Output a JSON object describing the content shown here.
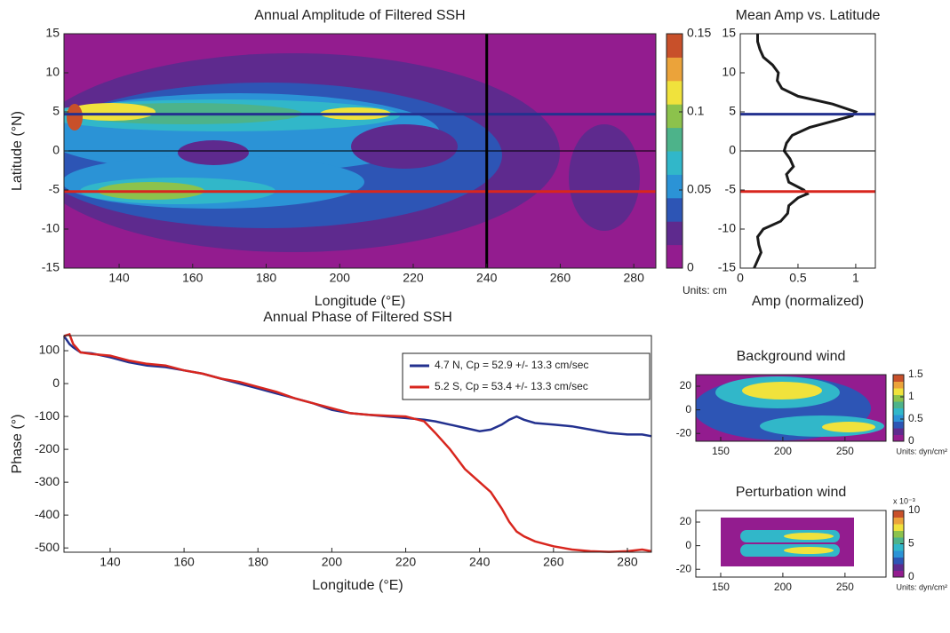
{
  "chart_data": [
    {
      "type": "contour",
      "title": "Annual Amplitude of Filtered SSH",
      "xlabel": "Longitude (°E)",
      "ylabel": "Latitude (°N)",
      "xlim": [
        125,
        286
      ],
      "xticks": [
        140,
        160,
        180,
        200,
        220,
        240,
        260,
        280
      ],
      "ylim": [
        -15,
        15
      ],
      "yticks": [
        -15,
        -10,
        -5,
        0,
        5,
        10,
        15
      ],
      "hlines": [
        {
          "y": 4.7,
          "color": "#23318f"
        },
        {
          "y": 0,
          "color": "#000000"
        },
        {
          "y": -5.2,
          "color": "#d8261e"
        }
      ],
      "vlines": [
        {
          "x": 240,
          "color": "#000000"
        }
      ],
      "colorbar": {
        "lim": [
          0,
          0.15
        ],
        "ticks": [
          0,
          0.05,
          0.1,
          0.15
        ],
        "units": "Units: cm",
        "colors": [
          "#931c8f",
          "#5e2a8e",
          "#2d55b5",
          "#2b93d6",
          "#31b7c9",
          "#4db38a",
          "#8cc24c",
          "#f0e23c",
          "#eba33a",
          "#c8502a"
        ]
      }
    },
    {
      "type": "profile",
      "title": "Mean Amp vs. Latitude",
      "xlabel": "Amp (normalized)",
      "color": "#1a1a1a",
      "xlim": [
        0,
        1.17
      ],
      "xticks": [
        0,
        0.5,
        1
      ],
      "ylim": [
        -15,
        15
      ],
      "yticks": [
        -15,
        -10,
        -5,
        0,
        5,
        10,
        15
      ],
      "y": [
        15,
        14,
        13,
        12,
        11,
        10,
        9,
        8,
        7,
        6,
        5,
        4.5,
        4,
        3,
        2,
        1,
        0,
        -1,
        -2,
        -3,
        -4,
        -5,
        -5.5,
        -6,
        -7,
        -8,
        -9,
        -10,
        -11,
        -12,
        -13,
        -14,
        -15
      ],
      "values": [
        0.15,
        0.15,
        0.17,
        0.2,
        0.28,
        0.33,
        0.32,
        0.36,
        0.5,
        0.8,
        1.0,
        0.97,
        0.85,
        0.6,
        0.45,
        0.4,
        0.38,
        0.43,
        0.46,
        0.4,
        0.42,
        0.55,
        0.58,
        0.5,
        0.42,
        0.41,
        0.35,
        0.2,
        0.15,
        0.16,
        0.18,
        0.15,
        0.12
      ],
      "hlines": [
        {
          "y": 4.7,
          "color": "#23318f"
        },
        {
          "y": 0,
          "color": "#000000"
        },
        {
          "y": -5.2,
          "color": "#d8261e"
        }
      ]
    },
    {
      "type": "line",
      "title": "Annual Phase of Filtered SSH",
      "xlabel": "Longitude (°E)",
      "ylabel": "Phase (°)",
      "xlim": [
        127.5,
        286.5
      ],
      "xticks": [
        140,
        160,
        180,
        200,
        220,
        240,
        260,
        280
      ],
      "ylim": [
        -513,
        146
      ],
      "yticks": [
        -500,
        -400,
        -300,
        -200,
        -100,
        0,
        100
      ],
      "x": [
        127.5,
        129,
        130,
        132,
        135,
        140,
        145,
        150,
        155,
        160,
        165,
        170,
        175,
        180,
        185,
        190,
        195,
        200,
        205,
        210,
        215,
        220,
        225,
        228,
        232,
        236,
        240,
        243,
        246,
        248,
        250,
        252,
        255,
        260,
        265,
        270,
        275,
        280,
        284,
        286.5
      ],
      "series": [
        {
          "name": "4.7 N, Cp = 52.9 +/- 13.3 cm/sec",
          "color": "#23318f",
          "values": [
            145,
            120,
            110,
            95,
            92,
            80,
            65,
            55,
            50,
            40,
            30,
            15,
            0,
            -15,
            -30,
            -45,
            -60,
            -80,
            -90,
            -95,
            -100,
            -105,
            -110,
            -115,
            -125,
            -135,
            -145,
            -140,
            -125,
            -110,
            -100,
            -110,
            -120,
            -125,
            -130,
            -140,
            -150,
            -155,
            -155,
            -160
          ]
        },
        {
          "name": "5.2 S, Cp = 53.4 +/- 13.3 cm/sec",
          "color": "#d8261e",
          "values": [
            145,
            150,
            120,
            95,
            90,
            85,
            70,
            60,
            55,
            40,
            30,
            15,
            5,
            -10,
            -25,
            -45,
            -60,
            -75,
            -90,
            -95,
            -98,
            -100,
            -115,
            -150,
            -200,
            -260,
            -300,
            -330,
            -380,
            -420,
            -450,
            -465,
            -480,
            -495,
            -505,
            -510,
            -512,
            -510,
            -505,
            -510
          ]
        }
      ]
    },
    {
      "type": "contour",
      "title": "Background wind",
      "xlim": [
        130,
        283
      ],
      "xticks": [
        150,
        200,
        250
      ],
      "ylim": [
        -26.6,
        29.8
      ],
      "yticks": [
        -20,
        0,
        20
      ],
      "colorbar": {
        "lim": [
          0,
          1.5
        ],
        "ticks": [
          0,
          0.5,
          1,
          1.5
        ],
        "units": "Units: dyn/cm²",
        "colors": [
          "#931c8f",
          "#5e2a8e",
          "#2d55b5",
          "#2b93d6",
          "#31b7c9",
          "#4db38a",
          "#8cc24c",
          "#f0e23c",
          "#eba33a",
          "#c8502a"
        ]
      }
    },
    {
      "type": "contour",
      "title": "Perturbation wind",
      "xlim": [
        130,
        283
      ],
      "xticks": [
        150,
        200,
        250
      ],
      "ylim": [
        -26.6,
        29.8
      ],
      "yticks": [
        -20,
        0,
        20
      ],
      "colorbar": {
        "lim": [
          0,
          10
        ],
        "ticks": [
          0,
          5,
          10
        ],
        "units": "Units: dyn/cm²",
        "scale_label": "x 10⁻³",
        "colors": [
          "#931c8f",
          "#5e2a8e",
          "#2d55b5",
          "#2b93d6",
          "#31b7c9",
          "#4db38a",
          "#8cc24c",
          "#f0e23c",
          "#eba33a",
          "#c8502a"
        ]
      }
    }
  ]
}
